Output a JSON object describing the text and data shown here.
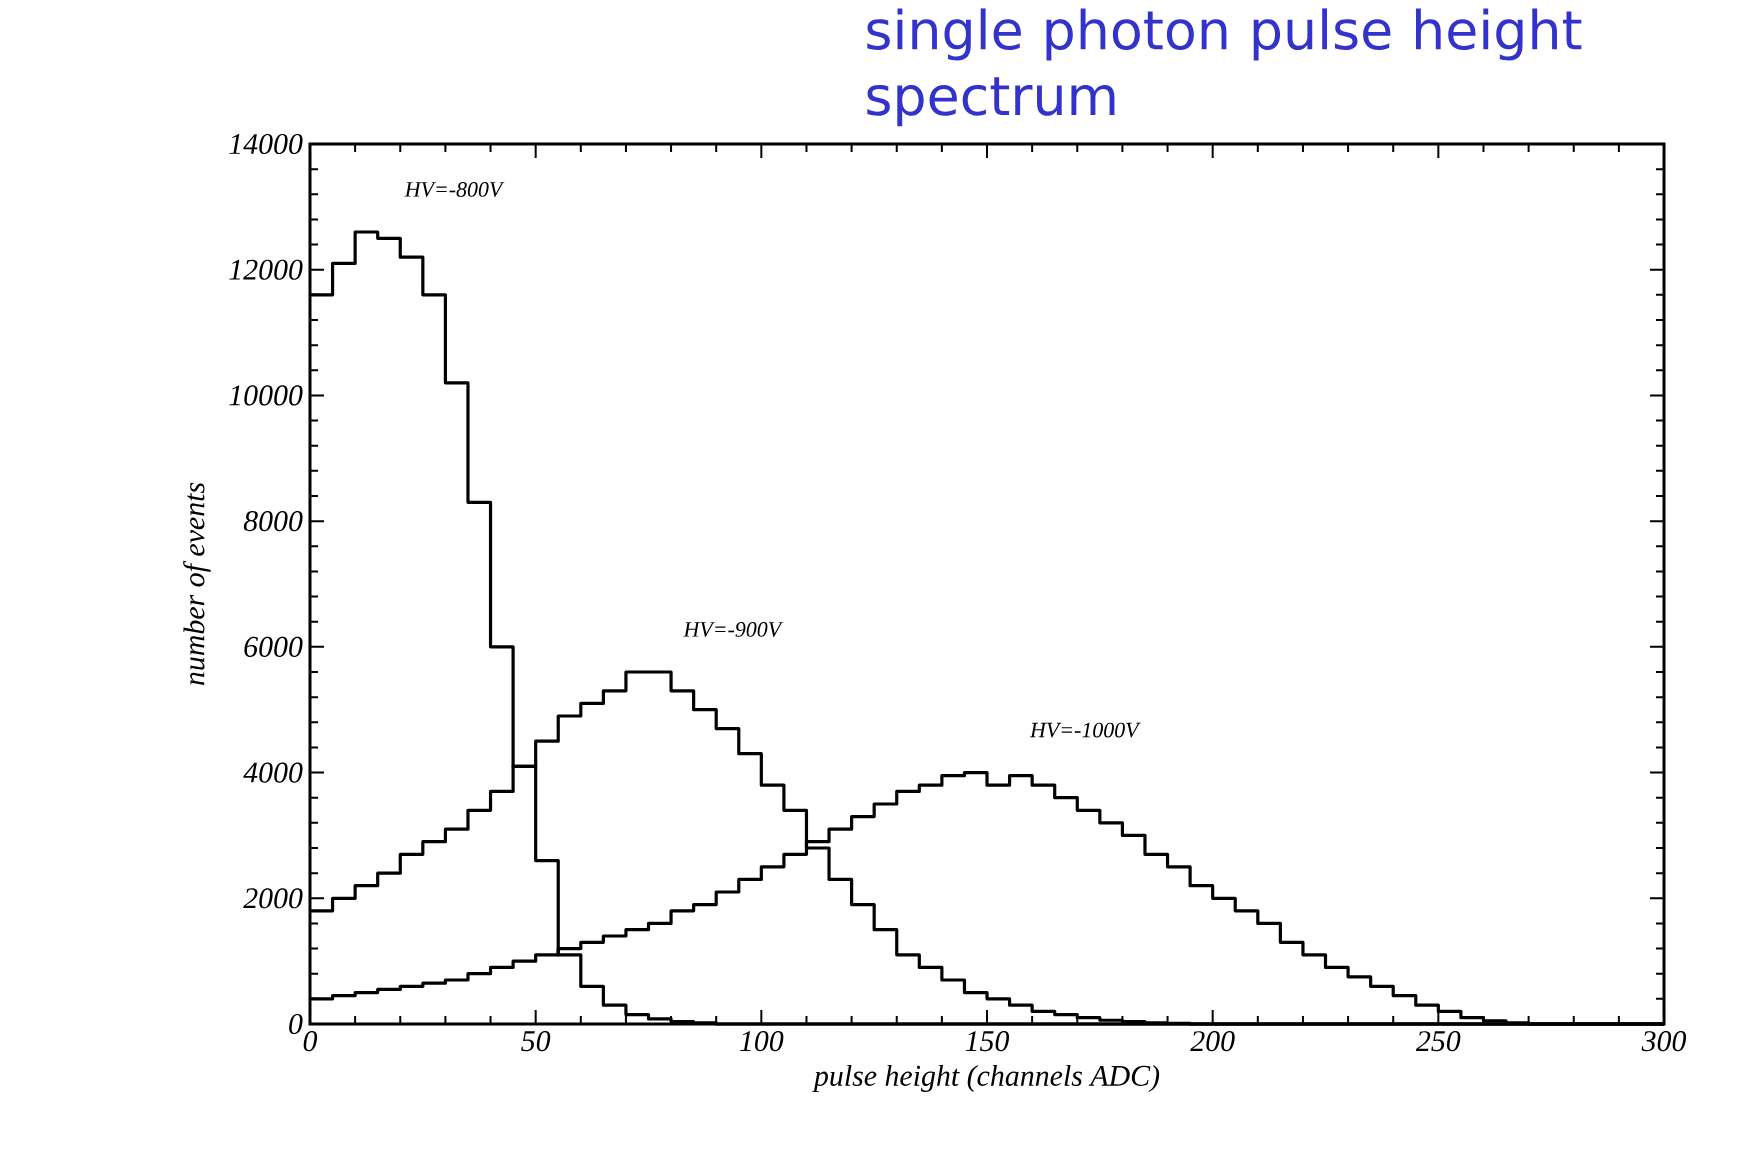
{
  "chart_data": {
    "type": "histogram",
    "title": "single photon pulse height spectrum",
    "xlabel": "pulse height (channels ADC)",
    "ylabel": "number of events",
    "bins": [
      0,
      5,
      10,
      15,
      20,
      25,
      30,
      35,
      40,
      45,
      50,
      55,
      60,
      65,
      70,
      75,
      80,
      85,
      90,
      95,
      100,
      105,
      110,
      115,
      120,
      125,
      130,
      135,
      140,
      145,
      150,
      155,
      160,
      165,
      170,
      175,
      180,
      185,
      190,
      195,
      200,
      205,
      210,
      215,
      220,
      225,
      230,
      235,
      240,
      245,
      250,
      255,
      260,
      265,
      270,
      275,
      280,
      285,
      290,
      295,
      300
    ],
    "series": [
      {
        "name": "HV=-800V",
        "color": "#000000",
        "values": [
          11600,
          12100,
          12600,
          12500,
          12200,
          11600,
          10200,
          8300,
          6000,
          4100,
          2600,
          1100,
          600,
          300,
          150,
          80,
          40,
          20,
          0,
          0,
          0,
          0,
          0,
          0,
          0,
          0,
          0,
          0,
          0,
          0,
          0,
          0,
          0,
          0,
          0,
          0,
          0,
          0,
          0,
          0,
          0,
          0,
          0,
          0,
          0,
          0,
          0,
          0,
          0,
          0,
          0,
          0,
          0,
          0,
          0,
          0,
          0,
          0,
          0,
          0
        ]
      },
      {
        "name": "HV=-900V",
        "color": "#000000",
        "values": [
          1800,
          2000,
          2200,
          2400,
          2700,
          2900,
          3100,
          3400,
          3700,
          4100,
          4500,
          4900,
          5100,
          5300,
          5600,
          5600,
          5300,
          5000,
          4700,
          4300,
          3800,
          3400,
          2800,
          2300,
          1900,
          1500,
          1100,
          900,
          700,
          500,
          400,
          300,
          200,
          150,
          100,
          60,
          40,
          20,
          10,
          0,
          0,
          0,
          0,
          0,
          0,
          0,
          0,
          0,
          0,
          0,
          0,
          0,
          0,
          0,
          0,
          0,
          0,
          0,
          0,
          0
        ]
      },
      {
        "name": "HV=-1000V",
        "color": "#000000",
        "values": [
          400,
          450,
          500,
          550,
          600,
          650,
          700,
          800,
          900,
          1000,
          1100,
          1200,
          1300,
          1400,
          1500,
          1600,
          1800,
          1900,
          2100,
          2300,
          2500,
          2700,
          2900,
          3100,
          3300,
          3500,
          3700,
          3800,
          3950,
          4000,
          3800,
          3950,
          3800,
          3600,
          3400,
          3200,
          3000,
          2700,
          2500,
          2200,
          2000,
          1800,
          1600,
          1300,
          1100,
          900,
          750,
          600,
          450,
          300,
          200,
          100,
          50,
          20,
          0,
          0,
          0,
          0,
          0,
          0
        ]
      }
    ],
    "xlim": [
      0,
      300
    ],
    "xticks": [
      0,
      50,
      100,
      150,
      200,
      250,
      300
    ],
    "ylim": [
      0,
      14000
    ],
    "yticks": [
      0,
      2000,
      4000,
      6000,
      8000,
      10000,
      12000,
      14000
    ]
  }
}
